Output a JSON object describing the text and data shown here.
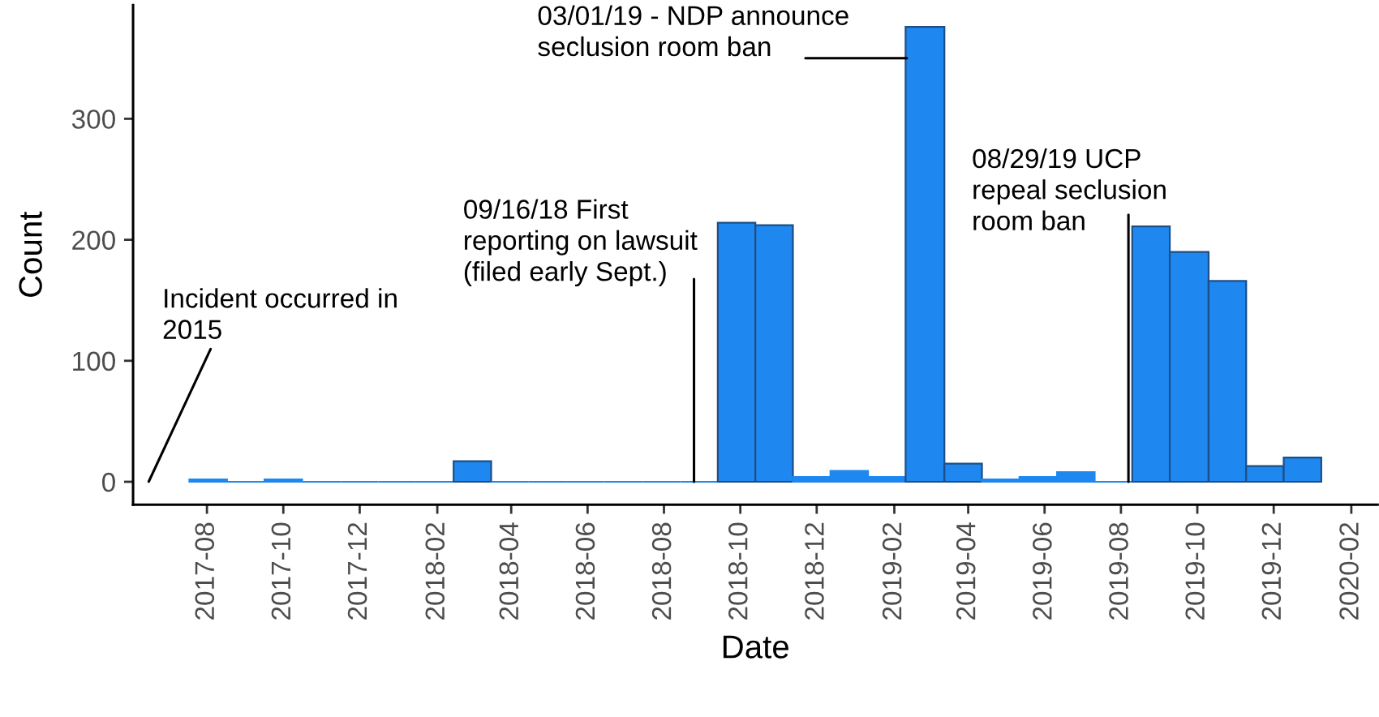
{
  "chart_data": {
    "type": "histogram",
    "xlabel": "Date",
    "ylabel": "Count",
    "bins": [
      "2017-07-18",
      "2017-08-17",
      "2017-09-16",
      "2017-10-16",
      "2017-11-16",
      "2017-12-16",
      "2018-01-15",
      "2018-02-14",
      "2018-03-16",
      "2018-04-15",
      "2018-05-15",
      "2018-06-14",
      "2018-07-15",
      "2018-08-14",
      "2018-09-13",
      "2018-10-13",
      "2018-11-12",
      "2018-12-12",
      "2019-01-11",
      "2019-02-10",
      "2019-03-13",
      "2019-04-12",
      "2019-05-12",
      "2019-06-11",
      "2019-07-11",
      "2019-08-10",
      "2019-09-09",
      "2019-10-10",
      "2019-11-09",
      "2019-12-09",
      "2020-01-08"
    ],
    "values": [
      2,
      0,
      2,
      0,
      0,
      0,
      0,
      17,
      0,
      0,
      0,
      0,
      0,
      0,
      214,
      212,
      4,
      9,
      4,
      376,
      15,
      2,
      4,
      8,
      0,
      211,
      190,
      166,
      13,
      20
    ],
    "color": "#1e88f0",
    "xlim": [
      "2017-06-03",
      "2020-02-22"
    ],
    "ylim": [
      -19,
      394
    ],
    "xticks": [
      "2017-08",
      "2017-10",
      "2017-12",
      "2018-02",
      "2018-04",
      "2018-06",
      "2018-08",
      "2018-10",
      "2018-12",
      "2019-02",
      "2019-04",
      "2019-06",
      "2019-08",
      "2019-10",
      "2019-12",
      "2020-02"
    ],
    "yticks": [
      0,
      100,
      200,
      300
    ],
    "annotations": [
      "Incident occurred in\n2015",
      {
        "text": "09/16/18 First\nreporting on lawsuit\n(filed early Sept.)",
        "x": "2018-08-25",
        "y": 0
      },
      {
        "text": "03/01/19 - NDP announce\nseclusion room ban",
        "x": "2019-02-11",
        "y": 350
      },
      {
        "text": "08/29/19 UCP\nrepeal seclusion\nroom ban",
        "x": "2019-08-07",
        "y": 0
      }
    ]
  }
}
